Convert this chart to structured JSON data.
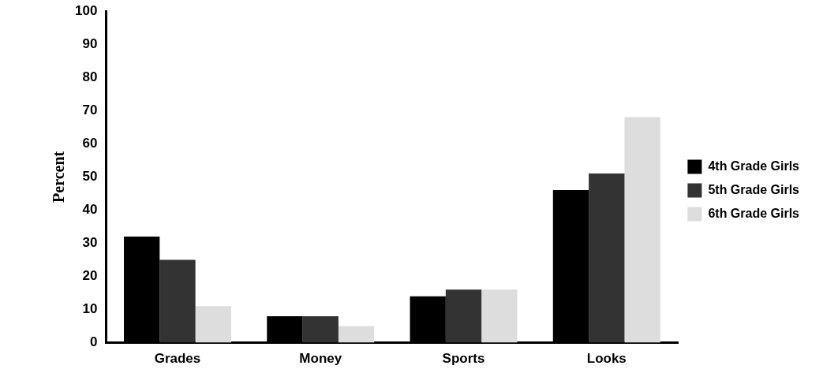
{
  "chart_data": {
    "type": "bar",
    "ylabel": "Percent",
    "categories": [
      "Grades",
      "Money",
      "Sports",
      "Looks"
    ],
    "series": [
      {
        "name": "4th Grade Girls",
        "color": "#000000",
        "values": [
          32,
          8,
          14,
          46
        ]
      },
      {
        "name": "5th Grade Girls",
        "color": "#333333",
        "values": [
          25,
          8,
          16,
          51
        ]
      },
      {
        "name": "6th Grade Girls",
        "color": "#dddddd",
        "values": [
          11,
          5,
          16,
          68
        ]
      }
    ],
    "ylim": [
      0,
      100
    ],
    "yticks": [
      0,
      10,
      20,
      30,
      40,
      50,
      60,
      70,
      80,
      90,
      100
    ],
    "grid": false,
    "legend": "right"
  }
}
